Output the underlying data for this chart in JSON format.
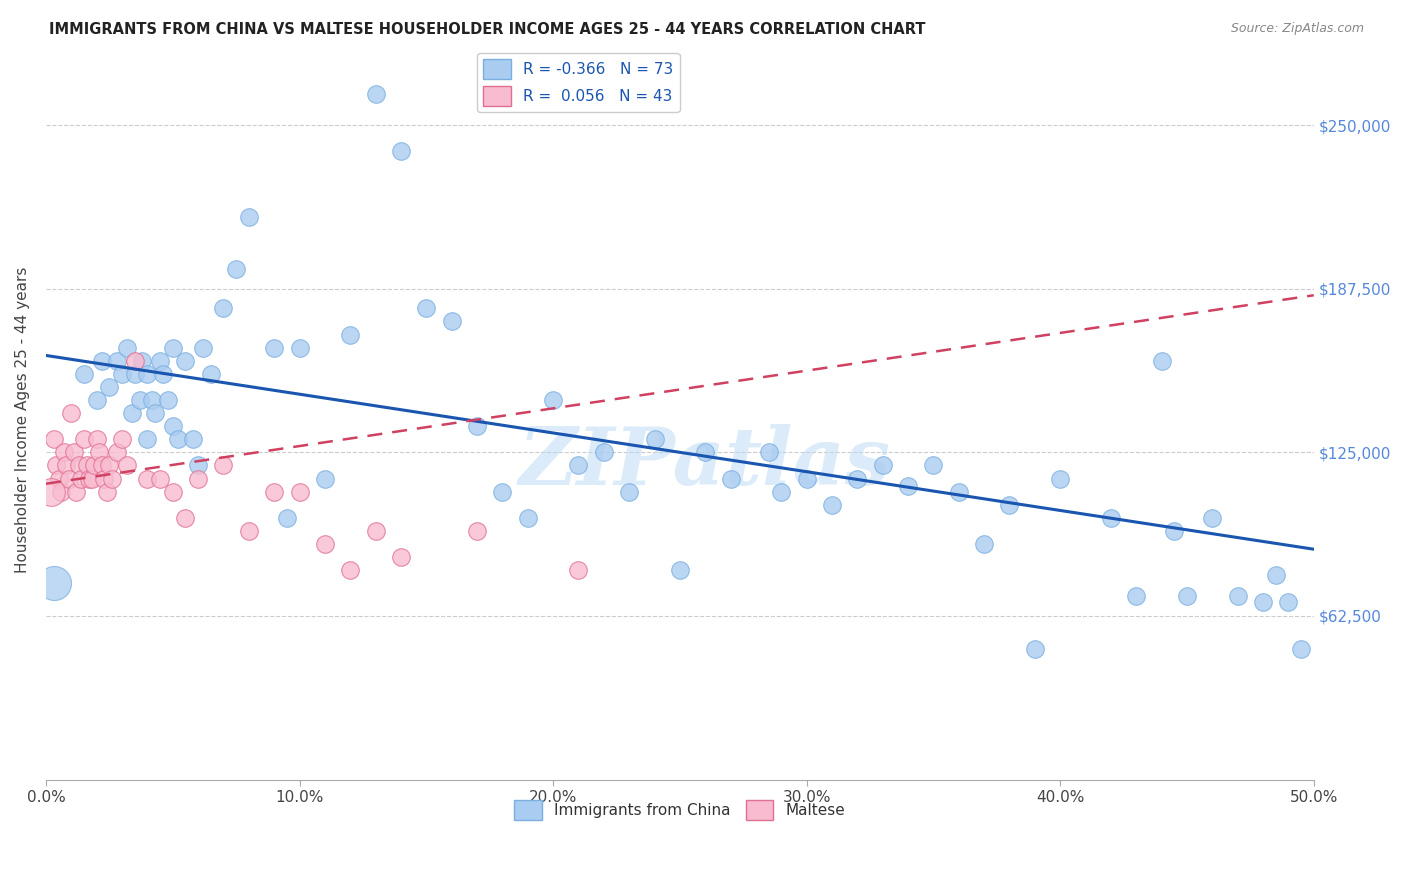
{
  "title": "IMMIGRANTS FROM CHINA VS MALTESE HOUSEHOLDER INCOME AGES 25 - 44 YEARS CORRELATION CHART",
  "source": "Source: ZipAtlas.com",
  "xlabel_vals": [
    0.0,
    10.0,
    20.0,
    30.0,
    40.0,
    50.0
  ],
  "ylabel_ticks": [
    "$62,500",
    "$125,000",
    "$187,500",
    "$250,000"
  ],
  "ylabel_vals": [
    62500,
    125000,
    187500,
    250000
  ],
  "ylabel_label": "Householder Income Ages 25 - 44 years",
  "xlim": [
    0.0,
    50.0
  ],
  "ylim": [
    0,
    275000
  ],
  "watermark": "ZIPatlas",
  "china_color": "#aaccf0",
  "china_edge": "#7aaee0",
  "china_line_color": "#1a56b0",
  "maltese_color": "#f8bbd0",
  "maltese_edge": "#e07090",
  "maltese_line_color": "#d04060",
  "china_R": "-0.366",
  "china_N": "73",
  "maltese_R": "0.056",
  "maltese_N": "43",
  "legend_label_china": "Immigrants from China",
  "legend_label_maltese": "Maltese",
  "china_line_x0": 0.0,
  "china_line_y0": 162000,
  "china_line_x1": 50.0,
  "china_line_y1": 88000,
  "maltese_line_x0": 0.0,
  "maltese_line_y0": 113000,
  "maltese_line_x1": 50.0,
  "maltese_line_y1": 185000,
  "china_scatter_x": [
    1.5,
    2.0,
    2.2,
    2.5,
    2.8,
    3.0,
    3.2,
    3.4,
    3.5,
    3.7,
    3.8,
    4.0,
    4.0,
    4.2,
    4.3,
    4.5,
    4.6,
    4.8,
    5.0,
    5.0,
    5.2,
    5.5,
    5.8,
    6.0,
    6.2,
    6.5,
    7.0,
    7.5,
    8.0,
    9.0,
    9.5,
    10.0,
    11.0,
    12.0,
    13.0,
    14.0,
    15.0,
    16.0,
    17.0,
    18.0,
    19.0,
    20.0,
    21.0,
    22.0,
    23.0,
    24.0,
    25.0,
    26.0,
    27.0,
    28.5,
    29.0,
    30.0,
    31.0,
    32.0,
    33.0,
    34.0,
    35.0,
    36.0,
    37.0,
    38.0,
    39.0,
    40.0,
    42.0,
    43.0,
    44.0,
    44.5,
    45.0,
    46.0,
    47.0,
    48.0,
    48.5,
    49.0,
    49.5
  ],
  "china_scatter_y": [
    155000,
    145000,
    160000,
    150000,
    160000,
    155000,
    165000,
    140000,
    155000,
    145000,
    160000,
    155000,
    130000,
    145000,
    140000,
    160000,
    155000,
    145000,
    165000,
    135000,
    130000,
    160000,
    130000,
    120000,
    165000,
    155000,
    180000,
    195000,
    215000,
    165000,
    100000,
    165000,
    115000,
    170000,
    262000,
    240000,
    180000,
    175000,
    135000,
    110000,
    100000,
    145000,
    120000,
    125000,
    110000,
    130000,
    80000,
    125000,
    115000,
    125000,
    110000,
    115000,
    105000,
    115000,
    120000,
    112000,
    120000,
    110000,
    90000,
    105000,
    50000,
    115000,
    100000,
    70000,
    160000,
    95000,
    70000,
    100000,
    70000,
    68000,
    78000,
    68000,
    50000
  ],
  "maltese_scatter_x": [
    0.3,
    0.4,
    0.5,
    0.6,
    0.7,
    0.8,
    0.9,
    1.0,
    1.1,
    1.2,
    1.3,
    1.4,
    1.5,
    1.6,
    1.7,
    1.8,
    1.9,
    2.0,
    2.1,
    2.2,
    2.3,
    2.4,
    2.5,
    2.6,
    2.8,
    3.0,
    3.2,
    3.5,
    4.0,
    4.5,
    5.0,
    5.5,
    6.0,
    7.0,
    8.0,
    9.0,
    10.0,
    11.0,
    12.0,
    13.0,
    14.0,
    17.0,
    21.0
  ],
  "maltese_scatter_y": [
    130000,
    120000,
    115000,
    110000,
    125000,
    120000,
    115000,
    140000,
    125000,
    110000,
    120000,
    115000,
    130000,
    120000,
    115000,
    115000,
    120000,
    130000,
    125000,
    120000,
    115000,
    110000,
    120000,
    115000,
    125000,
    130000,
    120000,
    160000,
    115000,
    115000,
    110000,
    100000,
    115000,
    120000,
    95000,
    110000,
    110000,
    90000,
    80000,
    95000,
    85000,
    95000,
    80000
  ],
  "maltese_large_x": [
    0.2
  ],
  "maltese_large_y": [
    110000
  ],
  "china_large_x": [
    0.3
  ],
  "china_large_y": [
    75000
  ]
}
